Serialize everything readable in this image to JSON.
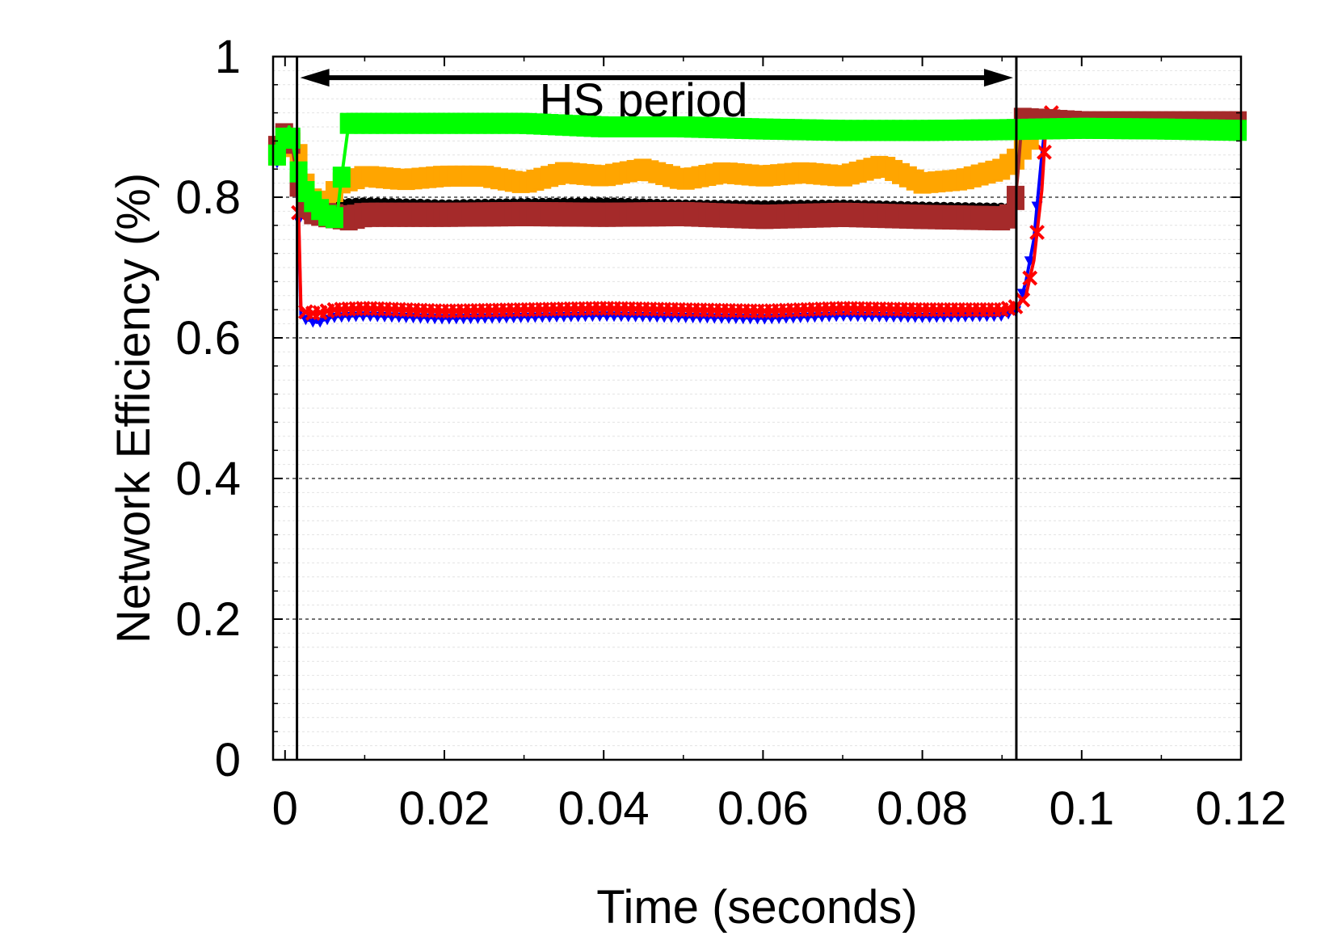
{
  "chart_data": {
    "type": "line",
    "xlabel": "Time (seconds)",
    "ylabel": "Network Efficiency (%)",
    "xlim": [
      -0.0015,
      0.12
    ],
    "ylim": [
      0,
      1
    ],
    "xticks": [
      {
        "value": 0,
        "label": "0"
      },
      {
        "value": 0.02,
        "label": "0.02"
      },
      {
        "value": 0.04,
        "label": "0.04"
      },
      {
        "value": 0.06,
        "label": "0.06"
      },
      {
        "value": 0.08,
        "label": "0.08"
      },
      {
        "value": 0.1,
        "label": "0.1"
      },
      {
        "value": 0.12,
        "label": "0.12"
      }
    ],
    "yticks": [
      {
        "value": 0,
        "label": "0"
      },
      {
        "value": 0.2,
        "label": "0.2"
      },
      {
        "value": 0.4,
        "label": "0.4"
      },
      {
        "value": 0.6,
        "label": "0.6"
      },
      {
        "value": 0.8,
        "label": "0.8"
      },
      {
        "value": 1,
        "label": "1"
      }
    ],
    "grid": "horizontal dashed",
    "annotations": [
      {
        "text": "HS period",
        "x": 0.045,
        "y": 0.915
      }
    ],
    "vlines": [
      0.0015,
      0.0918
    ],
    "period_arrow": {
      "from": 0.0015,
      "to": 0.0918,
      "y": 0.97
    },
    "series": [
      {
        "color": "#0000ff",
        "marker": "triangle",
        "x": [
          -0.001,
          0.0005,
          0.0015,
          0.002,
          0.003,
          0.004,
          0.006,
          0.01,
          0.02,
          0.03,
          0.04,
          0.05,
          0.06,
          0.07,
          0.08,
          0.09,
          0.092,
          0.093,
          0.094,
          0.095,
          0.0955,
          0.097,
          0.1,
          0.11,
          0.12
        ],
        "y": [
          0.85,
          0.87,
          0.86,
          0.63,
          0.625,
          0.622,
          0.63,
          0.632,
          0.628,
          0.63,
          0.632,
          0.63,
          0.628,
          0.632,
          0.63,
          0.632,
          0.64,
          0.68,
          0.74,
          0.86,
          0.91,
          0.905,
          0.905,
          0.905,
          0.905
        ]
      },
      {
        "color": "#ff0000",
        "marker": "x",
        "x": [
          -0.001,
          0.0005,
          0.0015,
          0.002,
          0.003,
          0.004,
          0.006,
          0.01,
          0.02,
          0.03,
          0.04,
          0.05,
          0.06,
          0.07,
          0.08,
          0.09,
          0.092,
          0.093,
          0.094,
          0.095,
          0.0955,
          0.0962,
          0.097,
          0.1,
          0.11,
          0.12
        ],
        "y": [
          0.86,
          0.88,
          0.87,
          0.64,
          0.635,
          0.635,
          0.64,
          0.642,
          0.638,
          0.64,
          0.642,
          0.64,
          0.638,
          0.642,
          0.64,
          0.64,
          0.645,
          0.66,
          0.71,
          0.81,
          0.9,
          0.92,
          0.91,
          0.905,
          0.905,
          0.905
        ]
      },
      {
        "color": "#000000",
        "marker": "circle",
        "x": [
          -0.001,
          0.0005,
          0.0015,
          0.003,
          0.005,
          0.01,
          0.02,
          0.03,
          0.04,
          0.05,
          0.06,
          0.07,
          0.08,
          0.0915
        ],
        "y": [
          0.87,
          0.9,
          0.83,
          0.79,
          0.79,
          0.793,
          0.79,
          0.792,
          0.793,
          0.79,
          0.789,
          0.79,
          0.787,
          0.785
        ]
      },
      {
        "color": "#ffa500",
        "marker": "square",
        "x": [
          -0.001,
          0.0005,
          0.0015,
          0.003,
          0.005,
          0.007,
          0.01,
          0.015,
          0.02,
          0.025,
          0.03,
          0.035,
          0.04,
          0.045,
          0.05,
          0.055,
          0.06,
          0.065,
          0.07,
          0.075,
          0.08,
          0.085,
          0.09,
          0.0918,
          0.093,
          0.094
        ],
        "y": [
          0.86,
          0.88,
          0.87,
          0.8,
          0.79,
          0.82,
          0.83,
          0.825,
          0.83,
          0.83,
          0.82,
          0.835,
          0.83,
          0.84,
          0.825,
          0.835,
          0.83,
          0.835,
          0.83,
          0.845,
          0.82,
          0.825,
          0.84,
          0.855,
          0.875,
          0.89
        ]
      },
      {
        "color": "#a52a2a",
        "marker": "square-open",
        "x": [
          -0.001,
          0.0005,
          0.0015,
          0.002,
          0.003,
          0.005,
          0.008,
          0.01,
          0.02,
          0.03,
          0.04,
          0.05,
          0.06,
          0.07,
          0.08,
          0.09,
          0.0915,
          0.092,
          0.0925,
          0.1,
          0.11,
          0.12
        ],
        "y": [
          0.87,
          0.9,
          0.83,
          0.8,
          0.78,
          0.775,
          0.77,
          0.775,
          0.775,
          0.776,
          0.775,
          0.776,
          0.772,
          0.775,
          0.772,
          0.77,
          0.775,
          0.835,
          0.91,
          0.905,
          0.905,
          0.905
        ]
      },
      {
        "color": "#00ff00",
        "marker": "square",
        "x": [
          -0.001,
          0.0005,
          0.002,
          0.003,
          0.005,
          0.0065,
          0.007,
          0.008,
          0.01,
          0.02,
          0.03,
          0.04,
          0.05,
          0.06,
          0.07,
          0.08,
          0.09,
          0.1,
          0.11,
          0.12
        ],
        "y": [
          0.86,
          0.9,
          0.82,
          0.8,
          0.775,
          0.77,
          0.82,
          0.905,
          0.905,
          0.905,
          0.905,
          0.9,
          0.9,
          0.897,
          0.895,
          0.895,
          0.896,
          0.898,
          0.897,
          0.895
        ]
      }
    ]
  }
}
